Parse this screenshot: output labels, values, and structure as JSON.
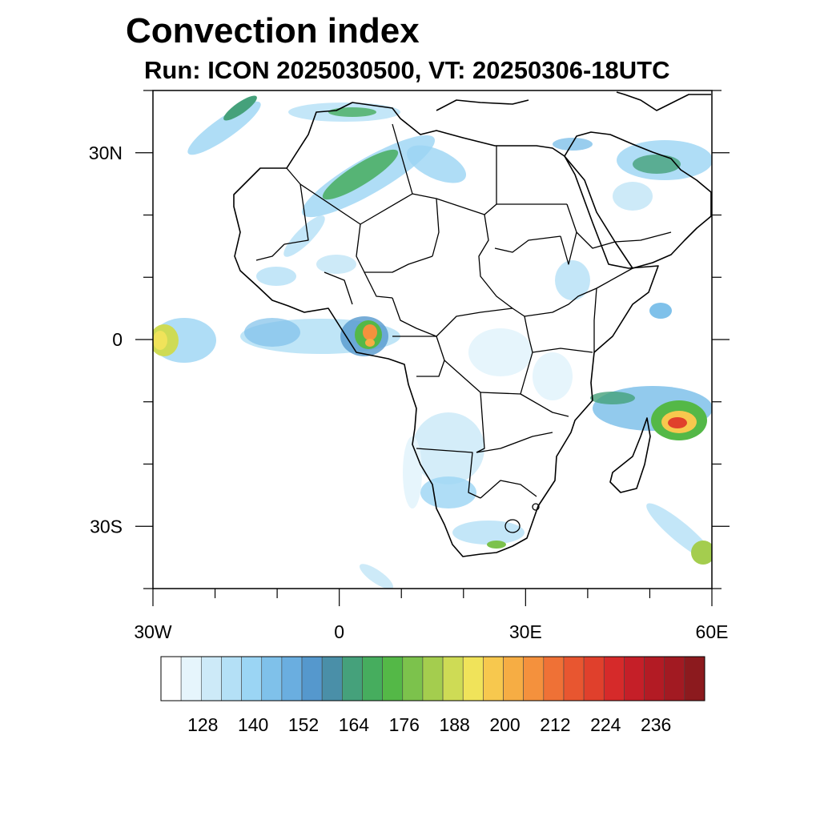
{
  "title": "Convection index",
  "subtitle": "Run: ICON 2025030500,  VT: 20250306-18UTC",
  "map": {
    "region": "Africa and Arabian Peninsula",
    "lat_labels": [
      "30N",
      "0",
      "30S"
    ],
    "lon_labels": [
      "30W",
      "0",
      "30E",
      "60E"
    ],
    "lat_label_values": [
      30,
      0,
      -30
    ],
    "lon_label_values": [
      -30,
      0,
      30,
      60
    ],
    "lon_range": [
      -30,
      60
    ],
    "lat_range": [
      -40,
      40
    ]
  },
  "colorbar": {
    "tick_labels": [
      "128",
      "140",
      "152",
      "164",
      "176",
      "188",
      "200",
      "212",
      "224",
      "236"
    ],
    "colors": [
      "#ffffff",
      "#e6f5fc",
      "#cdeaf8",
      "#b4e0f6",
      "#9bd5f4",
      "#7fc1ea",
      "#6aaee0",
      "#5598cd",
      "#4a8fa8",
      "#45a17b",
      "#46ad5e",
      "#54b847",
      "#7cc24c",
      "#a4cd4e",
      "#cedb55",
      "#f0e35a",
      "#f7c84e",
      "#f6ad44",
      "#f4913d",
      "#ef7136",
      "#e85630",
      "#e0402c",
      "#d62a2a",
      "#c51f28",
      "#b31b24",
      "#a21a22",
      "#8c1a1e"
    ]
  }
}
